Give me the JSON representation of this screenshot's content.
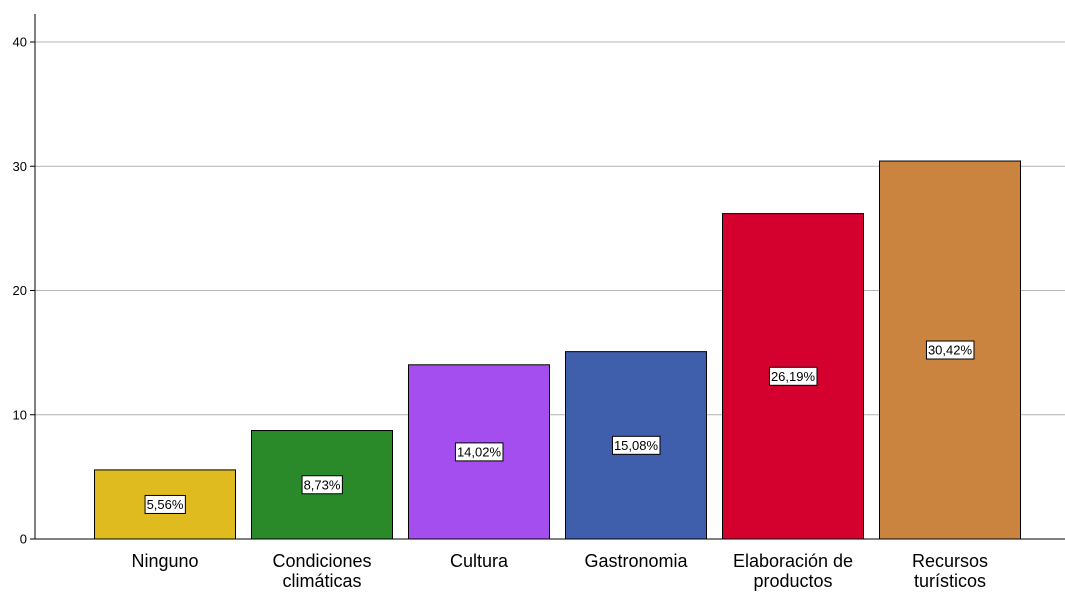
{
  "chart_data": {
    "type": "bar",
    "categories": [
      [
        "Ninguno"
      ],
      [
        "Condiciones",
        "climáticas"
      ],
      [
        "Cultura"
      ],
      [
        "Gastronomia"
      ],
      [
        "Elaboración de",
        "productos"
      ],
      [
        "Recursos",
        "turísticos"
      ]
    ],
    "values": [
      5.56,
      8.73,
      14.02,
      15.08,
      26.19,
      30.42
    ],
    "data_labels": [
      "5,56%",
      "8,73%",
      "14,02%",
      "15,08%",
      "26,19%",
      "30,42%"
    ],
    "colors": [
      "#e0bb1f",
      "#2a8a2a",
      "#a54ef0",
      "#3f5fac",
      "#d4002e",
      "#cb843f"
    ],
    "yticks": [
      "0",
      "10",
      "20",
      "30",
      "40"
    ],
    "ylim": [
      0,
      40
    ],
    "grid": true,
    "title": "",
    "xlabel": "",
    "ylabel": ""
  }
}
